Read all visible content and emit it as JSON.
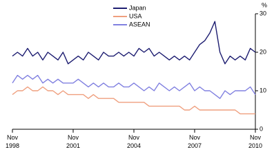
{
  "chart_data": {
    "type": "line",
    "y_label": "%",
    "categories": [
      "Nov 1998",
      null,
      null,
      null,
      null,
      null,
      null,
      null,
      null,
      null,
      null,
      null,
      "Nov 2001",
      null,
      null,
      null,
      null,
      null,
      null,
      null,
      null,
      null,
      null,
      null,
      "Nov 2004",
      null,
      null,
      null,
      null,
      null,
      null,
      null,
      null,
      null,
      null,
      null,
      "Nov 2007",
      null,
      null,
      null,
      null,
      null,
      null,
      null,
      null,
      null,
      null,
      null,
      "Nov 2010"
    ],
    "series": [
      {
        "name": "Japan",
        "color": "#1c1c70",
        "values": [
          19,
          20,
          19,
          21,
          19,
          20,
          18,
          20,
          19,
          18,
          20,
          17,
          18,
          19,
          18,
          20,
          19,
          18,
          20,
          19,
          19,
          20,
          19,
          20,
          19,
          21,
          20,
          21,
          19,
          20,
          19,
          18,
          19,
          18,
          19,
          18,
          20,
          22,
          23,
          25,
          28,
          20,
          17,
          19,
          18,
          19,
          18,
          21,
          20
        ]
      },
      {
        "name": "USA",
        "color": "#ef9f7e",
        "values": [
          9,
          10,
          10,
          11,
          10,
          10,
          11,
          10,
          10,
          9,
          10,
          9,
          9,
          9,
          9,
          8,
          9,
          8,
          8,
          8,
          8,
          7,
          7,
          7,
          7,
          7,
          7,
          6,
          6,
          6,
          6,
          6,
          6,
          6,
          5,
          5,
          6,
          5,
          5,
          5,
          5,
          5,
          5,
          5,
          5,
          4,
          4,
          4,
          4
        ]
      },
      {
        "name": "ASEAN",
        "color": "#8080e0",
        "values": [
          12,
          14,
          13,
          14,
          13,
          14,
          12,
          13,
          12,
          13,
          12,
          12,
          12,
          13,
          12,
          11,
          12,
          11,
          12,
          11,
          11,
          12,
          11,
          11,
          12,
          11,
          10,
          11,
          10,
          12,
          11,
          10,
          11,
          10,
          11,
          12,
          10,
          11,
          10,
          10,
          9,
          8,
          10,
          9,
          10,
          10,
          10,
          11,
          9
        ]
      }
    ],
    "ylim": [
      0,
      30
    ],
    "yticks": [
      0,
      10,
      20,
      30
    ],
    "grid": false
  }
}
